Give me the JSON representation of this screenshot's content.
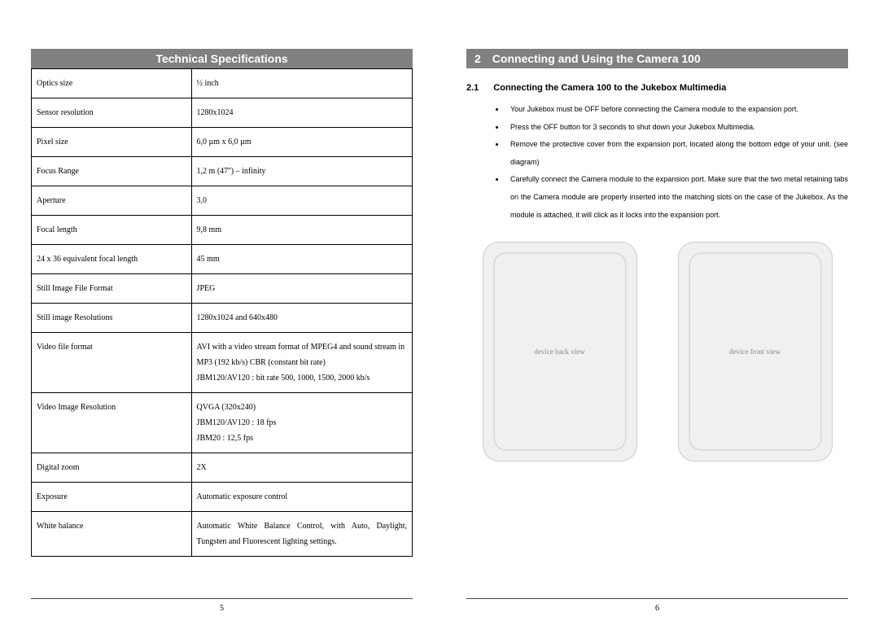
{
  "left": {
    "header": "Technical Specifications",
    "pageNumber": "5",
    "rows": [
      {
        "label": "Optics size",
        "value": "½ inch"
      },
      {
        "label": "Sensor resolution",
        "value": "1280x1024"
      },
      {
        "label": "Pixel size",
        "value": "6,0 µm x 6,0 µm"
      },
      {
        "label": "Focus Range",
        "value": "1,2 m (47'') – infinity"
      },
      {
        "label": "Aperture",
        "value": "3,0"
      },
      {
        "label": "Focal length",
        "value": "9,8 mm"
      },
      {
        "label": "24 x 36 equivalent focal length",
        "value": "45 mm"
      },
      {
        "label": "Still Image File Format",
        "value": "JPEG"
      },
      {
        "label": "Still image Resolutions",
        "value": "1280x1024 and 640x480"
      },
      {
        "label": "Video file format",
        "value": "AVI with a video stream format of MPEG4 and sound stream in MP3 (192 kb/s) CBR (constant bit rate)\nJBM120/AV120 : bit rate 500, 1000, 1500, 2000 kb/s"
      },
      {
        "label": "Video Image Resolution",
        "value": "QVGA (320x240)\nJBM120/AV120 : 18 fps\nJBM20 : 12,5 fps"
      },
      {
        "label": "Digital zoom",
        "value": "2X"
      },
      {
        "label": "Exposure",
        "value": "Automatic exposure control"
      },
      {
        "label": "White balance",
        "value": "Automatic White Balance Control, with Auto, Daylight, Tungsten and Fluorescent lighting settings."
      }
    ]
  },
  "right": {
    "chapterNum": "2",
    "chapterTitle": "Connecting and Using the Camera 100",
    "subNum": "2.1",
    "subTitle": "Connecting the Camera 100 to the Jukebox Multimedia",
    "pageNumber": "6",
    "bullets": [
      "Your Jukebox must be OFF before connecting the Camera module to the expansion port.",
      "Press the OFF button for 3 seconds to shut down your Jukebox Multimedia.",
      "Remove the protective cover from the expansion port, located along the bottom edge of your unit. (see diagram)",
      "Carefully connect the Camera module to the expansion port. Make sure that the two metal retaining tabs on the Camera module are properly inserted into the matching slots on the case of the Jukebox. As the module is attached, it will click as it locks into the expansion port."
    ],
    "img1_alt": "device back view",
    "img2_alt": "device front view"
  }
}
